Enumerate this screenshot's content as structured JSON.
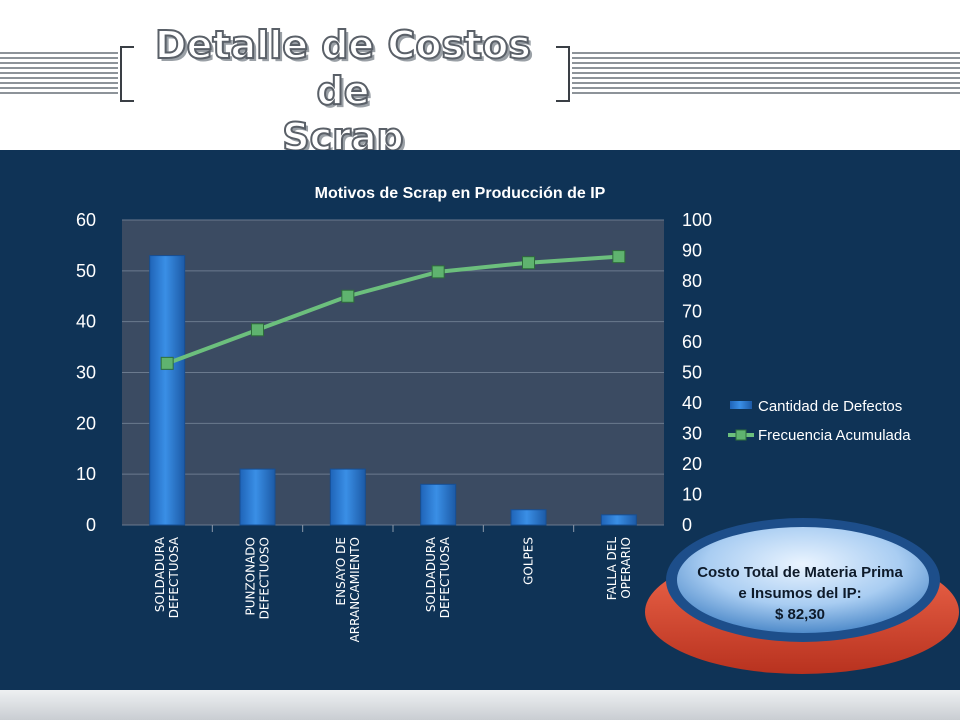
{
  "slide": {
    "title_line1": "Detalle de Costos de",
    "title_line2": "Scrap"
  },
  "chart_data": {
    "type": "bar",
    "title": "Motivos de Scrap en Producción de IP",
    "categories": [
      [
        "SOLDADURA",
        "DEFECTUOSA"
      ],
      [
        "PUNZONADO",
        "DEFECTUOSO"
      ],
      [
        "ENSAYO DE",
        "ARRANCAMIENTO"
      ],
      [
        "SOLDADURA",
        "DEFECTUOSA"
      ],
      [
        "GOLPES"
      ],
      [
        "FALLA DEL",
        "OPERARIO"
      ]
    ],
    "series": [
      {
        "name": "Cantidad de Defectos",
        "type": "bar",
        "axis": "left",
        "values": [
          53,
          11,
          11,
          8,
          3,
          2
        ]
      },
      {
        "name": "Frecuencia Acumulada",
        "type": "line",
        "axis": "right",
        "values": [
          53,
          64,
          75,
          83,
          86,
          88
        ]
      }
    ],
    "y_left": {
      "ylim": [
        0,
        60
      ],
      "ticks": [
        "0",
        "10",
        "20",
        "30",
        "40",
        "50",
        "60"
      ]
    },
    "y_right": {
      "ylim": [
        0,
        100
      ],
      "ticks": [
        "0",
        "10",
        "20",
        "30",
        "40",
        "50",
        "60",
        "70",
        "80",
        "90",
        "100"
      ]
    },
    "legend_position": "right",
    "colors": {
      "bar": "#2f7fd6",
      "line": "#6cbf7d",
      "plot_bg": "#3b4b62",
      "panel_bg": "#0f3356"
    }
  },
  "callout": {
    "line1": "Costo Total de Materia Prima",
    "line2": "e Insumos del IP:",
    "line3": "$ 82,30"
  }
}
